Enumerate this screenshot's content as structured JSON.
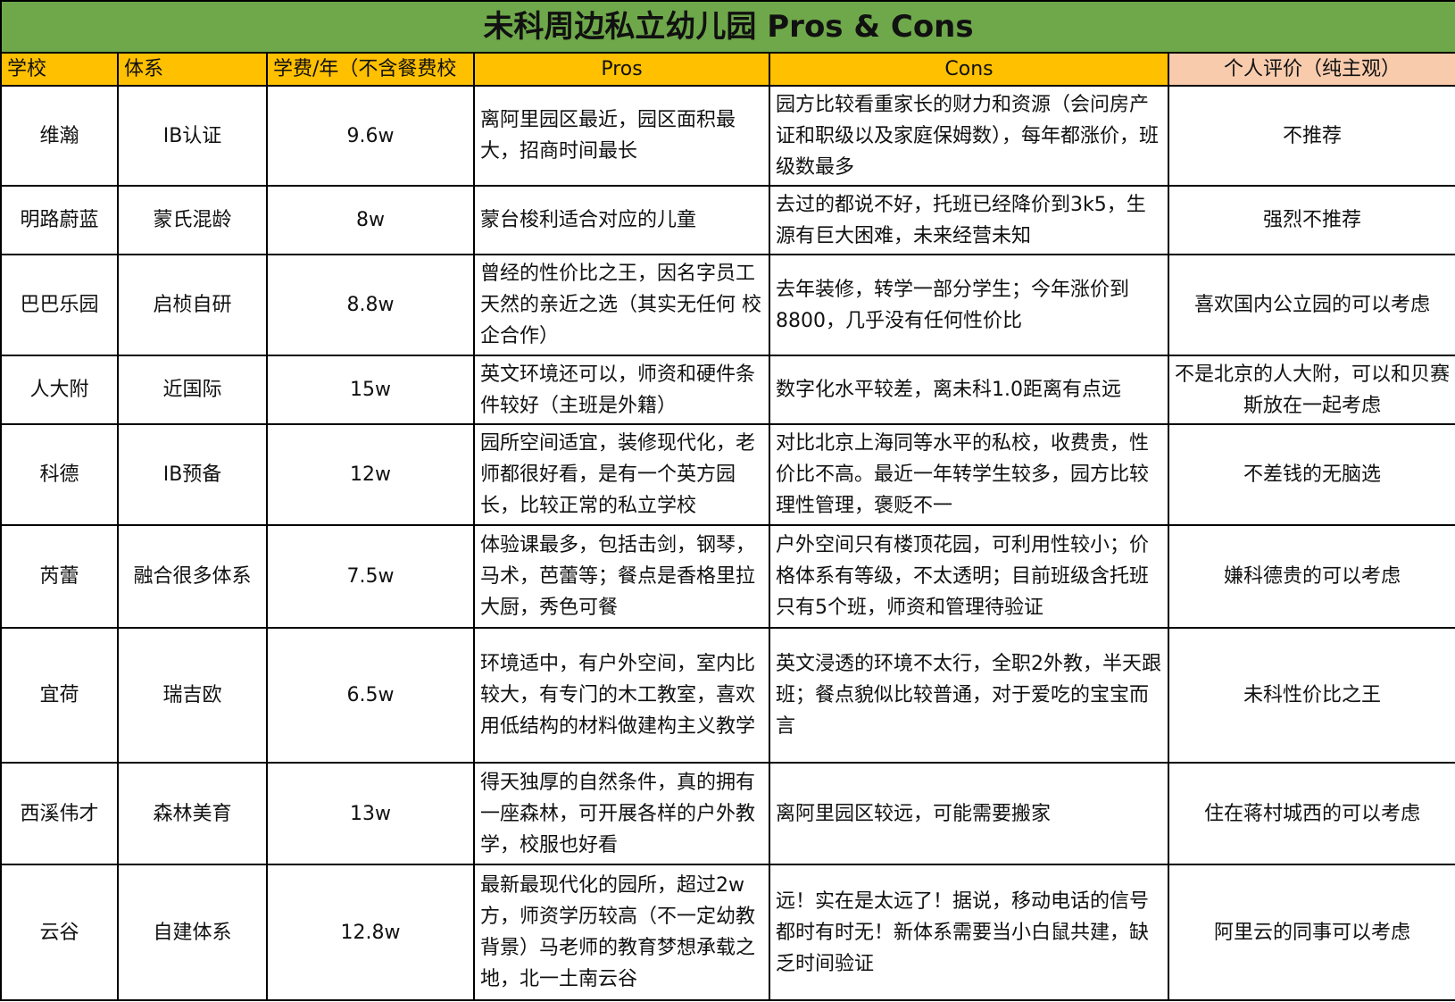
{
  "title": "未科周边私立幼儿园 Pros & Cons",
  "colors": {
    "title_bg": "#6ea84a",
    "header_bg": "#ffc000",
    "eval_header_bg": "#f8cbad"
  },
  "headers": [
    "学校",
    "体系",
    "学费/年（不含餐费校",
    "Pros",
    "Cons",
    "个人评价（纯主观）"
  ],
  "rows": [
    {
      "school": "维瀚",
      "system": "IB认证",
      "fee": "9.6w",
      "pros": "离阿里园区最近，园区面积最大，招商时间最长",
      "cons": "园方比较看重家长的财力和资源（会问房产证和职级以及家庭保姆数），每年都涨价，班级数最多",
      "eval": "不推荐"
    },
    {
      "school": "明路蔚蓝",
      "system": "蒙氏混龄",
      "fee": "8w",
      "pros": "蒙台梭利适合对应的儿童",
      "cons": "去过的都说不好，托班已经降价到3k5，生源有巨大困难，未来经营未知",
      "eval": "强烈不推荐"
    },
    {
      "school": "巴巴乐园",
      "system": "启桢自研",
      "fee": "8.8w",
      "pros": "曾经的性价比之王，因名字员工天然的亲近之选（其实无任何 校企合作）",
      "cons": "去年装修，转学一部分学生；今年涨价到8800，几乎没有任何性价比",
      "eval": "喜欢国内公立园的可以考虑"
    },
    {
      "school": "人大附",
      "system": "近国际",
      "fee": "15w",
      "pros": "英文环境还可以，师资和硬件条件较好（主班是外籍）",
      "cons": "数字化水平较差，离未科1.0距离有点远",
      "eval": "不是北京的人大附，可以和贝赛斯放在一起考虑"
    },
    {
      "school": "科德",
      "system": "IB预备",
      "fee": "12w",
      "pros": "园所空间适宜，装修现代化，老师都很好看，是有一个英方园长，比较正常的私立学校",
      "cons": "对比北京上海同等水平的私校，收费贵，性价比不高。最近一年转学生较多，园方比较理性管理，褒贬不一",
      "eval": "不差钱的无脑选"
    },
    {
      "school": "芮蕾",
      "system": "融合很多体系",
      "fee": "7.5w",
      "pros": "体验课最多，包括击剑，钢琴，马术，芭蕾等；餐点是香格里拉大厨，秀色可餐",
      "cons": "户外空间只有楼顶花园，可利用性较小；价格体系有等级，不太透明；目前班级含托班只有5个班，师资和管理待验证",
      "eval": "嫌科德贵的可以考虑"
    },
    {
      "school": "宜荷",
      "system": "瑞吉欧",
      "fee": "6.5w",
      "pros": "环境适中，有户外空间，室内比较大，有专门的木工教室，喜欢用低结构的材料做建构主义教学",
      "cons": "英文浸透的环境不太行，全职2外教，半天跟班；餐点貌似比较普通，对于爱吃的宝宝而言",
      "eval": "未科性价比之王"
    },
    {
      "school": "西溪伟才",
      "system": "森林美育",
      "fee": "13w",
      "pros": "得天独厚的自然条件，真的拥有一座森林，可开展各样的户外教学，校服也好看",
      "cons": "离阿里园区较远，可能需要搬家",
      "eval": "住在蒋村城西的可以考虑"
    },
    {
      "school": "云谷",
      "system": "自建体系",
      "fee": "12.8w",
      "pros": "最新最现代化的园所，超过2w方，师资学历较高（不一定幼教背景）马老师的教育梦想承载之地，北一土南云谷",
      "cons": "远！实在是太远了！据说，移动电话的信号都时有时无！新体系需要当小白鼠共建，缺乏时间验证",
      "eval": "阿里云的同事可以考虑"
    }
  ]
}
